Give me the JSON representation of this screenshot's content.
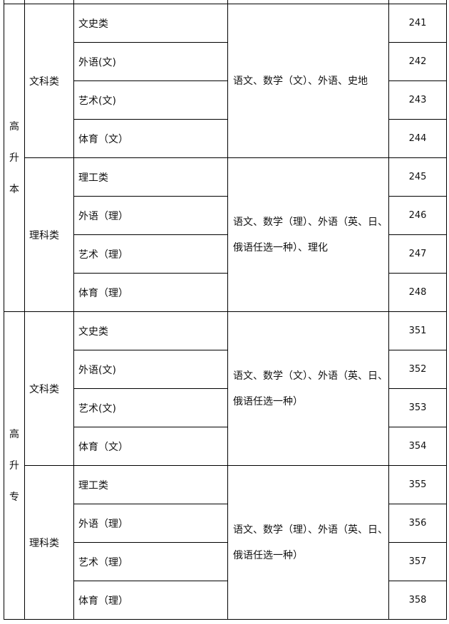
{
  "groups": [
    {
      "level": [
        "高",
        "升",
        "本"
      ],
      "categories": [
        {
          "name": "文科类",
          "subjects": "语文、数学（文）、外语、史地",
          "majors": [
            {
              "name": "文史类",
              "code": "241"
            },
            {
              "name": "外语(文)",
              "code": "242"
            },
            {
              "name": "艺术(文)",
              "code": "243"
            },
            {
              "name": "体育（文）",
              "code": "244"
            }
          ]
        },
        {
          "name": "理科类",
          "subjects": "语文、数学（理）、外语（英、日、俄语任选一种）、理化",
          "majors": [
            {
              "name": "理工类",
              "code": "245"
            },
            {
              "name": "外语（理）",
              "code": "246"
            },
            {
              "name": "艺术（理）",
              "code": "247"
            },
            {
              "name": "体育（理）",
              "code": "248"
            }
          ]
        }
      ]
    },
    {
      "level": [
        "高",
        "升",
        "专"
      ],
      "categories": [
        {
          "name": "文科类",
          "subjects": "语文、数学（文）、外语（英、日、俄语任选一种）",
          "majors": [
            {
              "name": "文史类",
              "code": "351"
            },
            {
              "name": "外语(文)",
              "code": "352"
            },
            {
              "name": "艺术(文)",
              "code": "353"
            },
            {
              "name": "体育（文）",
              "code": "354"
            }
          ]
        },
        {
          "name": "理科类",
          "subjects": "语文、数学（理）、外语（英、日、俄语任选一种）",
          "majors": [
            {
              "name": "理工类",
              "code": "355"
            },
            {
              "name": "外语（理）",
              "code": "356"
            },
            {
              "name": "艺术（理）",
              "code": "357"
            },
            {
              "name": "体育（理）",
              "code": "358"
            }
          ]
        }
      ]
    }
  ]
}
